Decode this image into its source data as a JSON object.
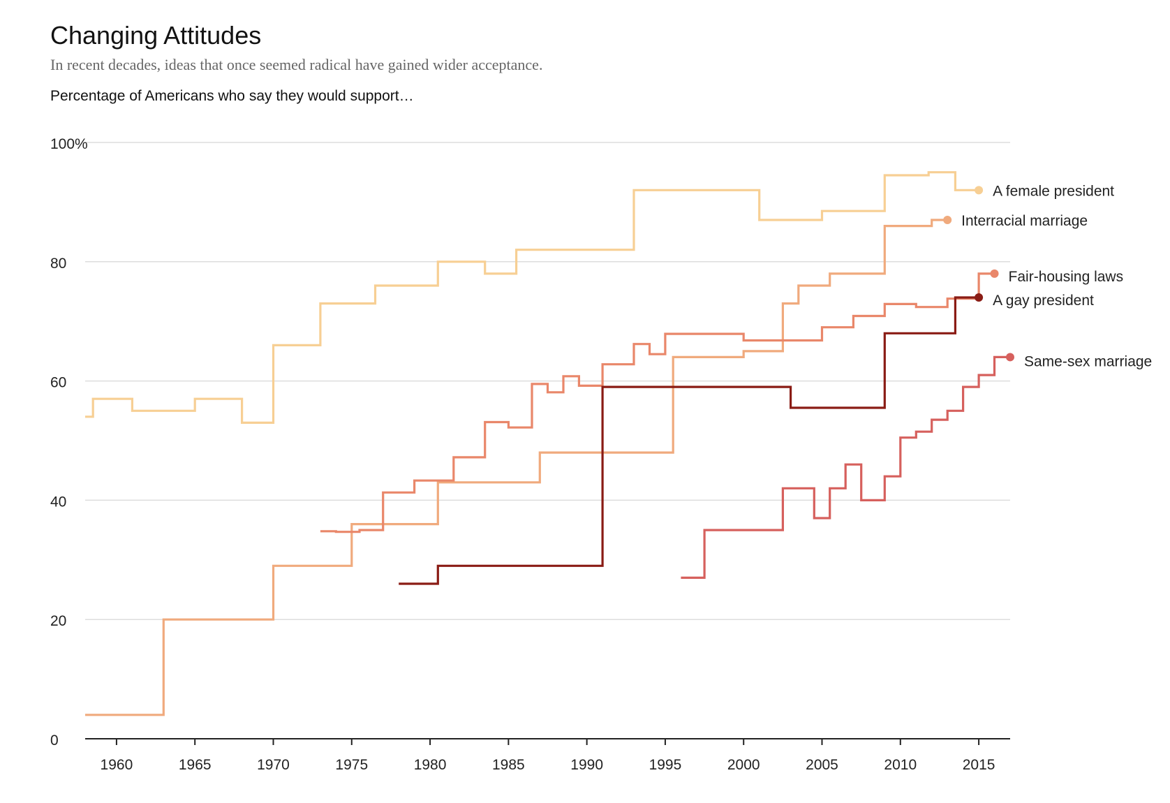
{
  "header": {
    "title": "Changing Attitudes",
    "subtitle": "In recent decades, ideas that once seemed radical have gained wider acceptance.",
    "lead": "Percentage of Americans who say they would support…"
  },
  "chart_data": {
    "type": "line",
    "step": true,
    "title": "Changing Attitudes",
    "subtitle": "In recent decades, ideas that once seemed radical have gained wider acceptance.",
    "xlabel": "",
    "ylabel": "Percentage of Americans who say they would support…",
    "xlim": [
      1958,
      2017
    ],
    "ylim": [
      0,
      100
    ],
    "grid": true,
    "legend": "direct labels at line ends",
    "x_ticks": [
      "1960",
      "1965",
      "1970",
      "1975",
      "1980",
      "1985",
      "1990",
      "1995",
      "2000",
      "2005",
      "2010",
      "2015"
    ],
    "y_ticks": [
      "0",
      "20",
      "40",
      "60",
      "80",
      "100%"
    ],
    "y_tick_values": [
      0,
      20,
      40,
      60,
      80,
      100
    ],
    "x_tick_values": [
      1960,
      1965,
      1970,
      1975,
      1980,
      1985,
      1990,
      1995,
      2000,
      2005,
      2010,
      2015
    ],
    "series": [
      {
        "name": "A female president",
        "color": "#f7cf94",
        "x": [
          1958,
          1958.5,
          1961,
          1965,
          1968,
          1970,
          1973,
          1976.5,
          1980.5,
          1983.5,
          1985.5,
          1993,
          2001,
          2005,
          2009,
          2011.8,
          2013.5,
          2015
        ],
        "y": [
          54,
          57,
          55,
          57,
          53,
          66,
          73,
          76,
          80,
          78,
          82,
          92,
          87,
          88.5,
          94.5,
          95,
          92,
          92
        ]
      },
      {
        "name": "Interracial marriage",
        "color": "#f0aa7d",
        "x": [
          1958,
          1963,
          1970,
          1975,
          1980.5,
          1987,
          1995.5,
          2000,
          2002.5,
          2003.5,
          2005.5,
          2009,
          2012,
          2013
        ],
        "y": [
          4,
          20,
          29,
          36,
          43,
          48,
          64,
          65,
          73,
          76,
          78,
          86,
          87,
          87
        ]
      },
      {
        "name": "Fair-housing laws",
        "color": "#e9876a",
        "x": [
          1973,
          1974,
          1975.5,
          1977,
          1979,
          1981.5,
          1983.5,
          1985,
          1986.5,
          1987.5,
          1988.5,
          1989.5,
          1991,
          1993,
          1994,
          1995,
          2000,
          2005,
          2007,
          2009,
          2011,
          2013,
          2015,
          2016
        ],
        "y": [
          34.8,
          34.7,
          35,
          41.3,
          43.3,
          47.2,
          53.1,
          52.2,
          59.5,
          58.1,
          60.8,
          59.2,
          62.8,
          66.2,
          64.5,
          67.9,
          66.8,
          69,
          70.9,
          72.9,
          72.4,
          73.8,
          78,
          78
        ]
      },
      {
        "name": "A gay president",
        "color": "#8a1c15",
        "x": [
          1978,
          1980.5,
          1991,
          2003,
          2009,
          2013.5,
          2015
        ],
        "y": [
          26,
          29,
          59,
          55.5,
          68,
          74,
          74
        ]
      },
      {
        "name": "Same-sex marriage",
        "color": "#d6605d",
        "x": [
          1996,
          1997.5,
          2002.5,
          2004.5,
          2005.5,
          2006.5,
          2007.5,
          2009,
          2010,
          2011,
          2012,
          2013,
          2014,
          2015,
          2016,
          2017
        ],
        "y": [
          27,
          35,
          42,
          37,
          42,
          46,
          40,
          44,
          50.5,
          51.5,
          53.5,
          55,
          59,
          61,
          64,
          64
        ]
      }
    ]
  }
}
